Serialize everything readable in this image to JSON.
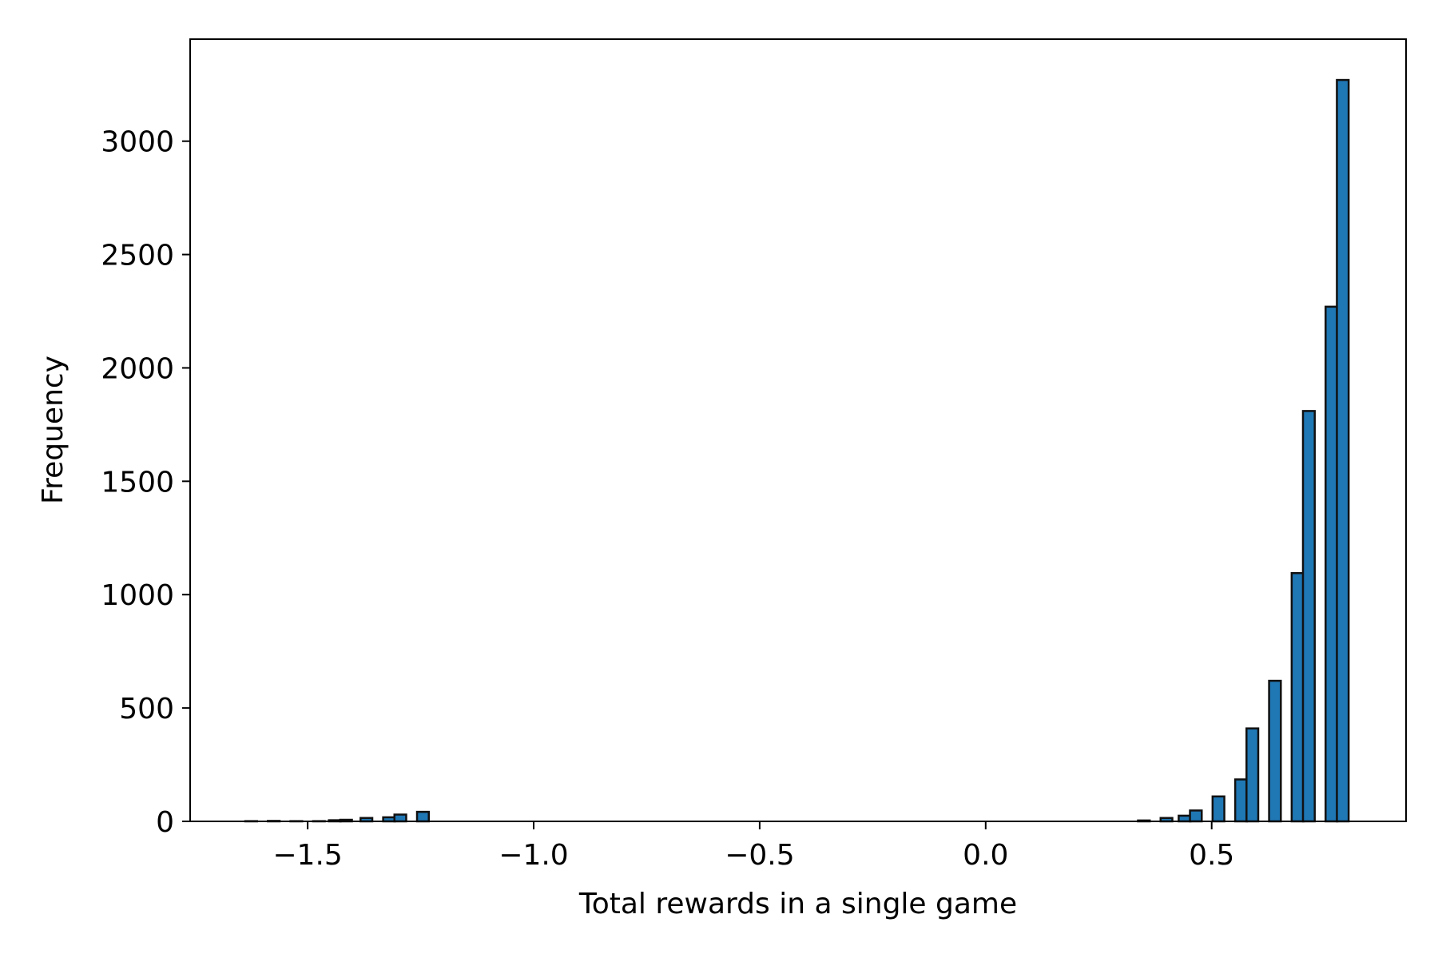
{
  "chart_data": {
    "type": "bar",
    "xlabel": "Total rewards in a single game",
    "ylabel": "Frequency",
    "xlim": [
      -1.76,
      0.93
    ],
    "ylim": [
      0,
      3450
    ],
    "xticks": [
      -1.5,
      -1.0,
      -0.5,
      0.0,
      0.5
    ],
    "xtick_labels": [
      "−1.5",
      "−1.0",
      "−0.5",
      "0.0",
      "0.5"
    ],
    "yticks": [
      0,
      500,
      1000,
      1500,
      2000,
      2500,
      3000
    ],
    "ytick_labels": [
      "0",
      "500",
      "1000",
      "1500",
      "2000",
      "2500",
      "3000"
    ],
    "bar_width": 0.026,
    "color": "#1f77b4",
    "edge_color": "#111111",
    "grid": false,
    "bars": [
      {
        "x": -1.625,
        "value": 1
      },
      {
        "x": -1.575,
        "value": 2
      },
      {
        "x": -1.525,
        "value": 1
      },
      {
        "x": -1.475,
        "value": 1
      },
      {
        "x": -1.44,
        "value": 5
      },
      {
        "x": -1.415,
        "value": 7
      },
      {
        "x": -1.37,
        "value": 15
      },
      {
        "x": -1.32,
        "value": 18
      },
      {
        "x": -1.295,
        "value": 30
      },
      {
        "x": -1.245,
        "value": 42
      },
      {
        "x": 0.35,
        "value": 4
      },
      {
        "x": 0.4,
        "value": 15
      },
      {
        "x": 0.44,
        "value": 25
      },
      {
        "x": 0.465,
        "value": 48
      },
      {
        "x": 0.515,
        "value": 110
      },
      {
        "x": 0.565,
        "value": 185
      },
      {
        "x": 0.59,
        "value": 410
      },
      {
        "x": 0.64,
        "value": 620
      },
      {
        "x": 0.69,
        "value": 1095
      },
      {
        "x": 0.715,
        "value": 1810
      },
      {
        "x": 0.765,
        "value": 2270
      },
      {
        "x": 0.79,
        "value": 3270
      }
    ]
  }
}
